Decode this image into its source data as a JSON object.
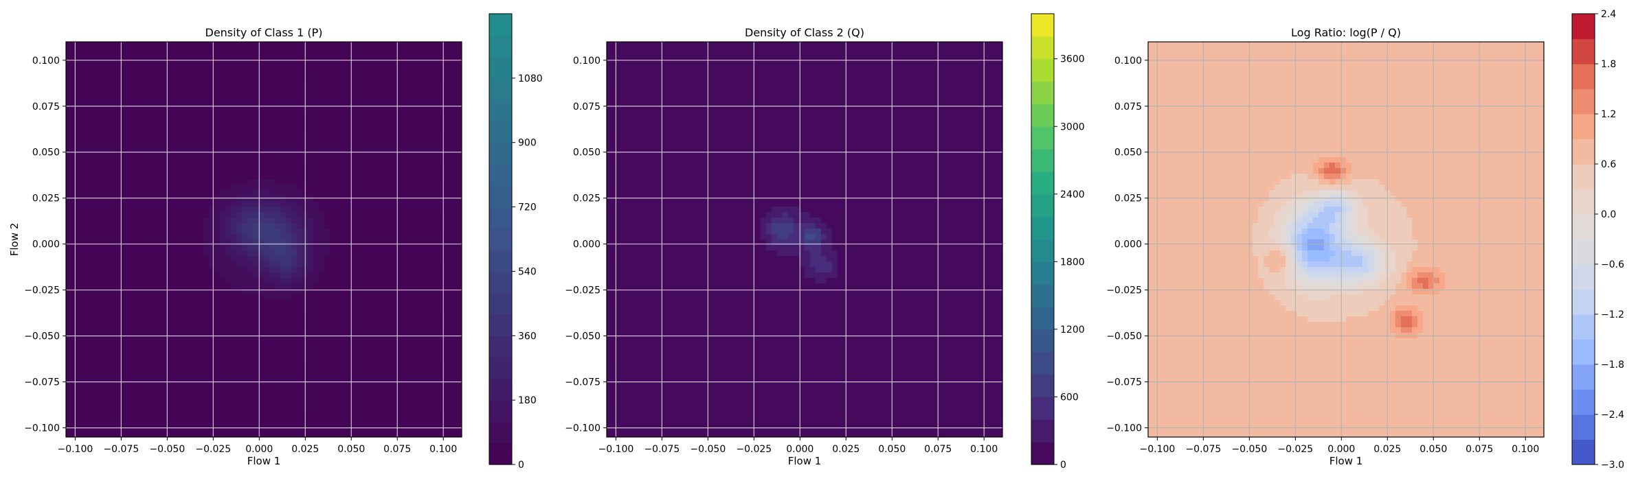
{
  "chart_data": [
    {
      "type": "heatmap",
      "title": "Density of Class 1 (P)",
      "xlabel": "Flow 1",
      "ylabel": "Flow 2",
      "xlim": [
        -0.105,
        0.11
      ],
      "ylim": [
        -0.105,
        0.11
      ],
      "xticks": [
        "−0.100",
        "−0.075",
        "−0.050",
        "−0.025",
        "0.000",
        "0.025",
        "0.050",
        "0.075",
        "0.100"
      ],
      "yticks": [
        "−0.100",
        "−0.075",
        "−0.050",
        "−0.025",
        "0.000",
        "0.025",
        "0.050",
        "0.075",
        "0.100"
      ],
      "colormap": "viridis",
      "grid": true,
      "colorbar": {
        "min": 0,
        "max": 1260,
        "ticks": [
          0,
          180,
          360,
          540,
          720,
          900,
          1080
        ],
        "levels": 21,
        "colors": [
          "#440154",
          "#3b528b",
          "#21908d"
        ]
      },
      "blobs": [
        {
          "x": 0.0,
          "y": 0.0,
          "sx": 0.03,
          "sy": 0.028,
          "peak": 90
        },
        {
          "x": 0.01,
          "y": 0.005,
          "sx": 0.012,
          "sy": 0.012,
          "peak": 260
        },
        {
          "x": -0.005,
          "y": 0.01,
          "sx": 0.01,
          "sy": 0.01,
          "peak": 220
        },
        {
          "x": 0.015,
          "y": -0.01,
          "sx": 0.008,
          "sy": 0.008,
          "peak": 200
        }
      ]
    },
    {
      "type": "heatmap",
      "title": "Density of Class 2 (Q)",
      "xlabel": "Flow 1",
      "ylabel": "",
      "xlim": [
        -0.105,
        0.11
      ],
      "ylim": [
        -0.105,
        0.11
      ],
      "xticks": [
        "−0.100",
        "−0.075",
        "−0.050",
        "−0.025",
        "0.000",
        "0.025",
        "0.050",
        "0.075",
        "0.100"
      ],
      "yticks": [
        "−0.100",
        "−0.075",
        "−0.050",
        "−0.025",
        "0.000",
        "0.025",
        "0.050",
        "0.075",
        "0.100"
      ],
      "colormap": "viridis",
      "grid": true,
      "colorbar": {
        "min": 0,
        "max": 4000,
        "ticks": [
          0,
          600,
          1200,
          1800,
          2400,
          3000,
          3600
        ],
        "levels": 20,
        "colors": [
          "#440154",
          "#472d7b",
          "#3b528b",
          "#2c728e",
          "#21908d",
          "#27ad81",
          "#5cc863",
          "#aadc32",
          "#fde725"
        ]
      },
      "blobs": [
        {
          "x": 0.0,
          "y": 0.005,
          "sx": 0.016,
          "sy": 0.014,
          "peak": 260
        },
        {
          "x": -0.01,
          "y": 0.008,
          "sx": 0.006,
          "sy": 0.006,
          "peak": 600
        },
        {
          "x": 0.007,
          "y": 0.004,
          "sx": 0.004,
          "sy": 0.004,
          "peak": 700
        },
        {
          "x": 0.012,
          "y": -0.012,
          "sx": 0.006,
          "sy": 0.006,
          "peak": 450
        }
      ]
    },
    {
      "type": "heatmap",
      "title": "Log Ratio: log(P / Q)",
      "xlabel": "Flow 1",
      "ylabel": "",
      "xlim": [
        -0.105,
        0.11
      ],
      "ylim": [
        -0.105,
        0.11
      ],
      "xticks": [
        "−0.100",
        "−0.075",
        "−0.050",
        "−0.025",
        "0.000",
        "0.025",
        "0.050",
        "0.075",
        "0.100"
      ],
      "yticks": [
        "−0.100",
        "−0.075",
        "−0.050",
        "−0.025",
        "0.000",
        "0.025",
        "0.050",
        "0.075",
        "0.100"
      ],
      "colormap": "coolwarm",
      "grid": true,
      "colorbar": {
        "min": -3.0,
        "max": 2.4,
        "ticks": [
          "2.4",
          "1.8",
          "1.2",
          "0.6",
          "0.0",
          "−0.6",
          "−1.2",
          "−1.8",
          "−2.4",
          "−3.0"
        ],
        "tick_values": [
          2.4,
          1.8,
          1.2,
          0.6,
          0.0,
          -0.6,
          -1.2,
          -1.8,
          -2.4,
          -3.0
        ],
        "levels": 18,
        "colors": [
          "#3b4cc0",
          "#6788ee",
          "#9abbff",
          "#c9d7f0",
          "#dddcdc",
          "#edd1c2",
          "#f7a889",
          "#e26952",
          "#b40426"
        ]
      },
      "background_value": 0.75,
      "blobs": [
        {
          "x": -0.015,
          "y": 0.0,
          "sx": 0.012,
          "sy": 0.014,
          "peak": -2.3
        },
        {
          "x": 0.01,
          "y": -0.01,
          "sx": 0.01,
          "sy": 0.008,
          "peak": -1.5
        },
        {
          "x": -0.003,
          "y": 0.02,
          "sx": 0.008,
          "sy": 0.006,
          "peak": -1.2
        },
        {
          "x": -0.005,
          "y": 0.04,
          "sx": 0.006,
          "sy": 0.005,
          "peak": 1.1
        },
        {
          "x": -0.032,
          "y": -0.008,
          "sx": 0.005,
          "sy": 0.005,
          "peak": 0.9
        },
        {
          "x": 0.045,
          "y": -0.02,
          "sx": 0.006,
          "sy": 0.005,
          "peak": 1.0
        },
        {
          "x": 0.035,
          "y": -0.042,
          "sx": 0.005,
          "sy": 0.005,
          "peak": 1.1
        },
        {
          "x": 0.0,
          "y": 0.0,
          "sx": 0.03,
          "sy": 0.03,
          "peak": -0.35
        }
      ]
    }
  ]
}
